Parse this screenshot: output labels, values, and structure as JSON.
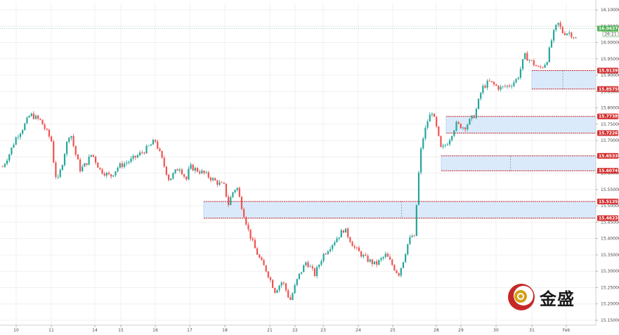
{
  "chart_data": {
    "type": "candlestick",
    "colors": {
      "up": "#26a69a",
      "down": "#ef5350",
      "zone_fill": "#dbeafb",
      "zone_line": "#d32f2f",
      "current": "#4caf50"
    },
    "y_range": [
      15.15,
      16.12
    ],
    "y_ticks": [
      "16.10000",
      "16.05000",
      "16.00000",
      "15.95000",
      "15.90000",
      "15.85000",
      "15.80000",
      "15.75000",
      "15.70000",
      "15.65000",
      "15.60000",
      "15.55000",
      "15.50000",
      "15.45000",
      "15.40000",
      "15.35000",
      "15.30000",
      "15.25000",
      "15.20000",
      "15.15000"
    ],
    "x_ticks": [
      {
        "label": "10",
        "day": 10
      },
      {
        "label": "11",
        "day": 11
      },
      {
        "label": "14",
        "day": 14
      },
      {
        "label": "15",
        "day": 15
      },
      {
        "label": "16",
        "day": 16
      },
      {
        "label": "17",
        "day": 17
      },
      {
        "label": "18",
        "day": 18
      },
      {
        "label": "21",
        "day": 21
      },
      {
        "label": "22",
        "day": 22
      },
      {
        "label": "23",
        "day": 23
      },
      {
        "label": "24",
        "day": 24
      },
      {
        "label": "25",
        "day": 25
      },
      {
        "label": "28",
        "day": 28
      },
      {
        "label": "29",
        "day": 29
      },
      {
        "label": "30",
        "day": 30
      },
      {
        "label": "31",
        "day": 31
      },
      {
        "label": "Feb",
        "day": 32
      }
    ],
    "close_path": [
      [
        9.6,
        15.62
      ],
      [
        9.8,
        15.66
      ],
      [
        10.0,
        15.71
      ],
      [
        10.2,
        15.74
      ],
      [
        10.4,
        15.78
      ],
      [
        10.7,
        15.76
      ],
      [
        11.0,
        15.7
      ],
      [
        11.2,
        15.62
      ],
      [
        11.4,
        15.57
      ],
      [
        11.7,
        15.62
      ],
      [
        12.0,
        15.68
      ],
      [
        12.3,
        15.73
      ],
      [
        12.6,
        15.67
      ],
      [
        13.0,
        15.61
      ],
      [
        13.4,
        15.63
      ],
      [
        13.8,
        15.66
      ],
      [
        14.2,
        15.61
      ],
      [
        14.6,
        15.59
      ],
      [
        14.9,
        15.62
      ],
      [
        15.3,
        15.64
      ],
      [
        15.7,
        15.67
      ],
      [
        16.0,
        15.7
      ],
      [
        16.2,
        15.64
      ],
      [
        16.4,
        15.58
      ],
      [
        16.7,
        15.62
      ],
      [
        16.9,
        15.58
      ],
      [
        17.0,
        15.62
      ],
      [
        17.4,
        15.6
      ],
      [
        17.8,
        15.57
      ],
      [
        18.0,
        15.56
      ],
      [
        18.2,
        15.5
      ],
      [
        18.5,
        15.54
      ],
      [
        18.8,
        15.56
      ],
      [
        19.0,
        15.52
      ],
      [
        19.3,
        15.47
      ],
      [
        19.6,
        15.42
      ],
      [
        20.0,
        15.37
      ],
      [
        20.4,
        15.33
      ],
      [
        20.8,
        15.3
      ],
      [
        21.2,
        15.24
      ],
      [
        21.5,
        15.27
      ],
      [
        21.8,
        15.21
      ],
      [
        22.1,
        15.28
      ],
      [
        22.4,
        15.33
      ],
      [
        22.7,
        15.29
      ],
      [
        23.0,
        15.35
      ],
      [
        23.3,
        15.39
      ],
      [
        23.6,
        15.43
      ],
      [
        23.9,
        15.37
      ],
      [
        24.2,
        15.34
      ],
      [
        24.5,
        15.32
      ],
      [
        24.8,
        15.35
      ],
      [
        25.1,
        15.31
      ],
      [
        25.4,
        15.29
      ],
      [
        25.7,
        15.33
      ],
      [
        26.0,
        15.38
      ],
      [
        26.3,
        15.41
      ],
      [
        26.5,
        15.4
      ],
      [
        26.7,
        15.55
      ],
      [
        26.9,
        15.66
      ],
      [
        27.1,
        15.71
      ],
      [
        27.4,
        15.76
      ],
      [
        27.7,
        15.79
      ],
      [
        28.0,
        15.74
      ],
      [
        28.2,
        15.67
      ],
      [
        28.5,
        15.7
      ],
      [
        28.8,
        15.75
      ],
      [
        29.1,
        15.74
      ],
      [
        29.4,
        15.78
      ],
      [
        29.6,
        15.86
      ],
      [
        29.8,
        15.88
      ],
      [
        30.1,
        15.86
      ],
      [
        30.4,
        15.87
      ],
      [
        30.6,
        15.89
      ],
      [
        30.8,
        15.96
      ],
      [
        31.0,
        15.94
      ],
      [
        31.2,
        15.92
      ],
      [
        31.35,
        15.93
      ],
      [
        31.45,
        15.95
      ],
      [
        31.6,
        16.02
      ],
      [
        31.75,
        16.06
      ],
      [
        31.9,
        16.03
      ],
      [
        32.1,
        16.03
      ],
      [
        32.3,
        16.01
      ]
    ],
    "zones": [
      {
        "top": 15.91399,
        "bottom": 15.85756,
        "from_day": 31.0
      },
      {
        "top": 15.77389,
        "bottom": 15.72267,
        "from_day": 28.4
      },
      {
        "top": 15.6533,
        "bottom": 15.60741,
        "from_day": 28.2
      },
      {
        "top": 15.5135,
        "bottom": 15.46239,
        "from_day": 17.4
      }
    ],
    "price_tags": [
      "15.91399",
      "15.85756",
      "15.77389",
      "15.72267",
      "15.65330",
      "15.60741",
      "15.51350",
      "15.46239"
    ],
    "current_price": {
      "label": "16.04274",
      "value": 16.04274,
      "countdown": "26:21"
    }
  },
  "logo": {
    "name": "金盛"
  }
}
